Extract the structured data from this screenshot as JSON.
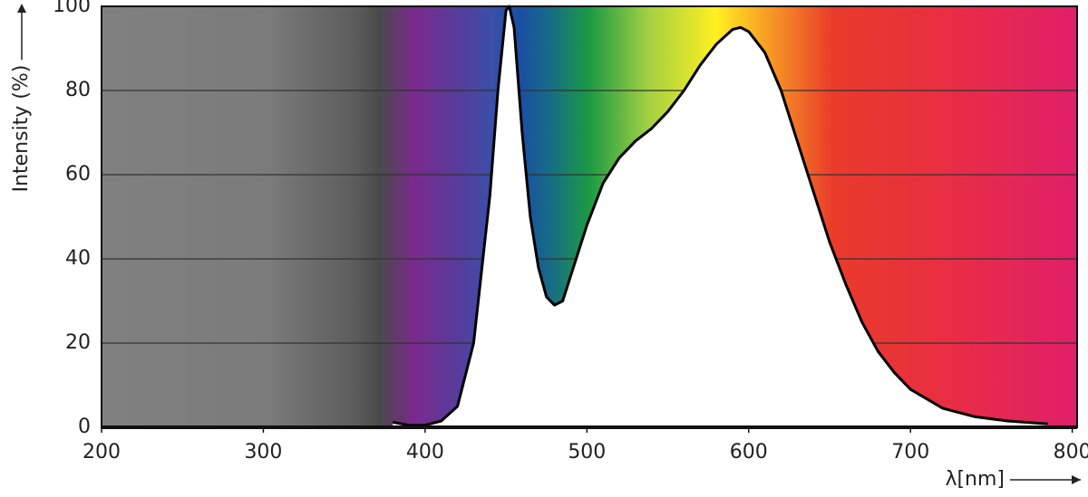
{
  "chart_data": {
    "type": "area",
    "x_label": "λ[nm]",
    "y_label": "Intensity (%)",
    "x": [
      380,
      390,
      400,
      410,
      420,
      430,
      440,
      445,
      450,
      452,
      455,
      460,
      465,
      470,
      475,
      480,
      485,
      490,
      500,
      510,
      520,
      530,
      540,
      550,
      560,
      570,
      580,
      590,
      595,
      600,
      610,
      620,
      630,
      640,
      650,
      660,
      670,
      680,
      690,
      700,
      720,
      740,
      760,
      785
    ],
    "values": [
      1.2,
      0.5,
      0.5,
      1.5,
      5,
      20,
      55,
      80,
      99,
      100,
      95,
      70,
      50,
      38,
      31,
      29,
      30,
      36,
      48,
      58,
      64,
      68,
      71,
      75,
      80,
      86,
      91,
      94.5,
      95,
      94,
      89,
      80,
      68,
      56,
      44,
      34,
      25,
      18,
      13,
      9,
      4.5,
      2.5,
      1.5,
      0.8
    ],
    "color": "#000000",
    "fill": "#ffffff",
    "xlim": [
      200,
      803
    ],
    "ylim": [
      0,
      100
    ],
    "xticks": [
      200,
      300,
      400,
      500,
      600,
      700,
      800
    ],
    "yticks": [
      0,
      20,
      40,
      60,
      80,
      100
    ],
    "grid": true
  }
}
